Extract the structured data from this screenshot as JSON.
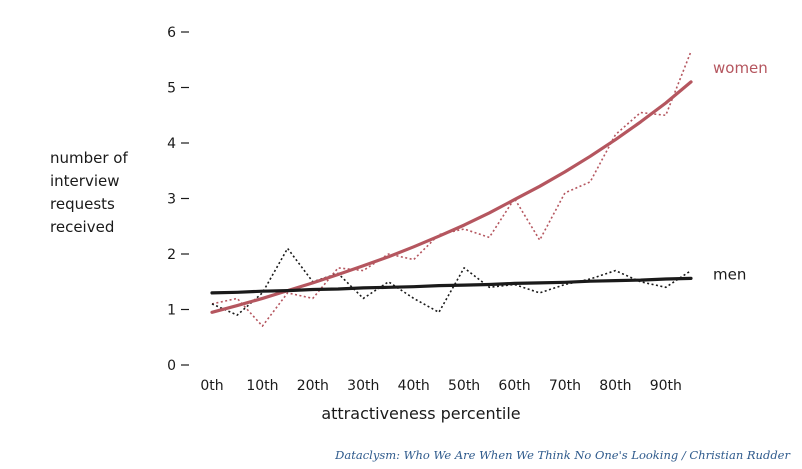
{
  "chart_data": {
    "type": "line",
    "categories": [
      "0th",
      "10th",
      "20th",
      "30th",
      "40th",
      "50th",
      "60th",
      "70th",
      "80th",
      "90th"
    ],
    "x": [
      0,
      5,
      10,
      15,
      20,
      25,
      30,
      35,
      40,
      45,
      50,
      55,
      60,
      65,
      70,
      75,
      80,
      85,
      90,
      95
    ],
    "ylabel_lines": [
      "number of",
      "interview",
      "requests",
      "received"
    ],
    "xlabel": "attractiveness percentile",
    "yticks": [
      0,
      1,
      2,
      3,
      4,
      5,
      6
    ],
    "ylim": [
      0,
      6
    ],
    "xlim": [
      0,
      95
    ],
    "grid": false,
    "legend": "direct labels at right end of lines",
    "series": [
      {
        "name": "women",
        "color": "#b5565f",
        "trend": [
          0.95,
          1.07,
          1.2,
          1.34,
          1.48,
          1.63,
          1.79,
          1.95,
          2.13,
          2.32,
          2.52,
          2.74,
          2.98,
          3.22,
          3.48,
          3.76,
          4.06,
          4.38,
          4.72,
          5.1
        ],
        "raw": [
          1.1,
          1.2,
          0.7,
          1.3,
          1.2,
          1.75,
          1.7,
          2.0,
          1.9,
          2.35,
          2.45,
          2.3,
          3.0,
          2.25,
          3.1,
          3.3,
          4.15,
          4.55,
          4.5,
          5.65
        ]
      },
      {
        "name": "men",
        "color": "#1a1a1a",
        "trend": [
          1.3,
          1.31,
          1.33,
          1.34,
          1.36,
          1.37,
          1.39,
          1.4,
          1.41,
          1.43,
          1.44,
          1.45,
          1.47,
          1.48,
          1.49,
          1.51,
          1.52,
          1.53,
          1.55,
          1.56
        ],
        "raw": [
          1.1,
          0.9,
          1.3,
          2.1,
          1.5,
          1.65,
          1.2,
          1.5,
          1.2,
          0.95,
          1.75,
          1.4,
          1.45,
          1.3,
          1.45,
          1.55,
          1.7,
          1.5,
          1.4,
          1.7
        ]
      }
    ]
  },
  "credit": "Dataclysm: Who We Are When We Think No One's Looking / Christian Rudder"
}
